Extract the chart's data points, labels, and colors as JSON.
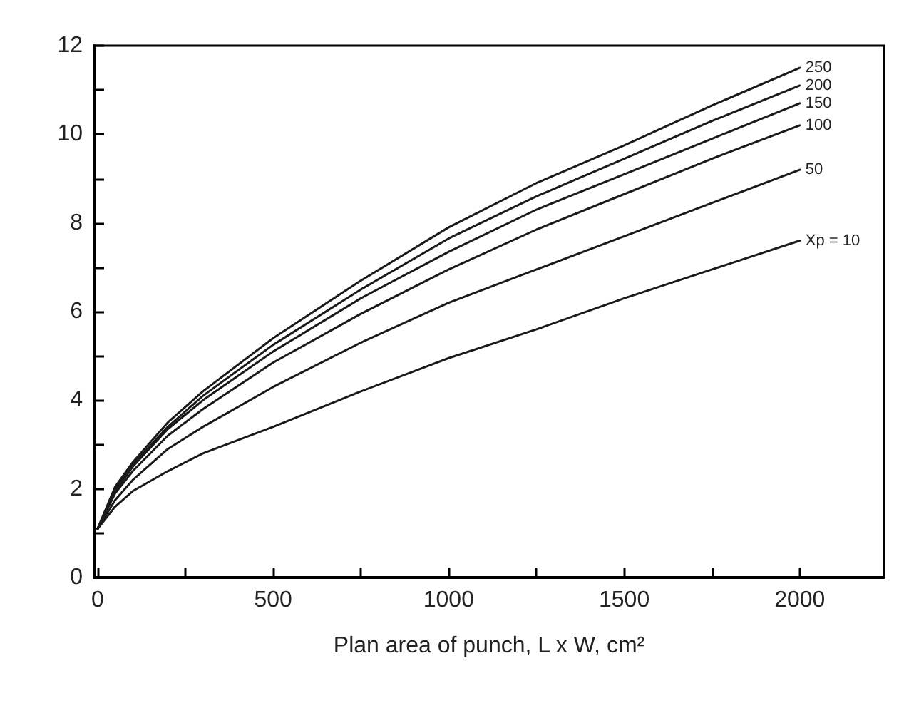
{
  "chart_data": {
    "type": "line",
    "xlabel": "Plan area of punch, L x W, cm²",
    "x": [
      0,
      50,
      100,
      200,
      300,
      500,
      750,
      1000,
      1250,
      1500,
      1750,
      2000
    ],
    "series": [
      {
        "name": "250",
        "color": "#1a1a1a",
        "values": [
          1.1,
          2.05,
          2.6,
          3.5,
          4.2,
          5.4,
          6.7,
          7.9,
          8.9,
          9.75,
          10.65,
          11.5
        ]
      },
      {
        "name": "200",
        "color": "#1a1a1a",
        "values": [
          1.1,
          2.0,
          2.55,
          3.4,
          4.1,
          5.25,
          6.5,
          7.65,
          8.6,
          9.45,
          10.3,
          11.1
        ]
      },
      {
        "name": "150",
        "color": "#1a1a1a",
        "values": [
          1.1,
          1.95,
          2.5,
          3.35,
          4.0,
          5.1,
          6.3,
          7.35,
          8.3,
          9.1,
          9.9,
          10.7
        ]
      },
      {
        "name": "100",
        "color": "#1a1a1a",
        "values": [
          1.1,
          1.9,
          2.4,
          3.2,
          3.8,
          4.85,
          5.95,
          6.95,
          7.85,
          8.65,
          9.45,
          10.2
        ]
      },
      {
        "name": "50",
        "color": "#1a1a1a",
        "values": [
          1.1,
          1.75,
          2.2,
          2.9,
          3.4,
          4.3,
          5.3,
          6.2,
          6.95,
          7.7,
          8.45,
          9.2
        ]
      },
      {
        "name": "Xp = 10",
        "color": "#1a1a1a",
        "values": [
          1.1,
          1.6,
          1.95,
          2.4,
          2.8,
          3.4,
          4.2,
          4.95,
          5.6,
          6.3,
          6.95,
          7.6
        ]
      }
    ],
    "xlim": [
      -10,
      2240
    ],
    "ylim": [
      0,
      12
    ],
    "xticks": [
      0,
      {
        "value": 250,
        "label": null
      },
      500,
      {
        "value": 750,
        "label": null
      },
      1000,
      {
        "value": 1250,
        "label": null
      },
      1500,
      {
        "value": 1750,
        "label": null
      },
      2000
    ],
    "yticks": [
      0,
      {
        "value": 1,
        "label": null
      },
      2,
      {
        "value": 3,
        "label": null
      },
      4,
      {
        "value": 5,
        "label": null
      },
      6,
      {
        "value": 7,
        "label": null
      },
      8,
      {
        "value": 9,
        "label": null
      },
      10,
      {
        "value": 11,
        "label": null
      },
      12
    ],
    "grid": false,
    "marker": "none",
    "line_style": "solid"
  }
}
